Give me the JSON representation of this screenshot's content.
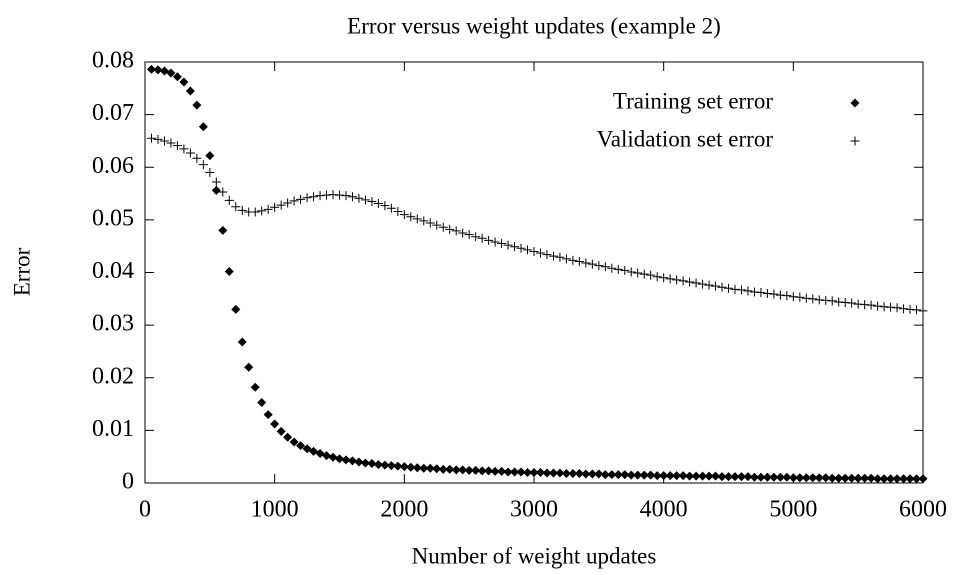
{
  "chart_data": {
    "type": "scatter",
    "title": "Error versus weight updates (example 2)",
    "xlabel": "Number of weight updates",
    "ylabel": "Error",
    "xlim": [
      0,
      6000
    ],
    "ylim": [
      0,
      0.08
    ],
    "xticks": [
      0,
      1000,
      2000,
      3000,
      4000,
      5000,
      6000
    ],
    "yticks": [
      0,
      0.01,
      0.02,
      0.03,
      0.04,
      0.05,
      0.06,
      0.07,
      0.08
    ],
    "legend": "top right",
    "x": [
      50,
      100,
      150,
      200,
      250,
      300,
      350,
      400,
      450,
      500,
      550,
      600,
      650,
      700,
      750,
      800,
      850,
      900,
      950,
      1000,
      1050,
      1100,
      1150,
      1200,
      1250,
      1300,
      1350,
      1400,
      1450,
      1500,
      1550,
      1600,
      1650,
      1700,
      1750,
      1800,
      1850,
      1900,
      1950,
      2000,
      2050,
      2100,
      2150,
      2200,
      2250,
      2300,
      2350,
      2400,
      2450,
      2500,
      2550,
      2600,
      2650,
      2700,
      2750,
      2800,
      2850,
      2900,
      2950,
      3000,
      3050,
      3100,
      3150,
      3200,
      3250,
      3300,
      3350,
      3400,
      3450,
      3500,
      3550,
      3600,
      3650,
      3700,
      3750,
      3800,
      3850,
      3900,
      3950,
      4000,
      4050,
      4100,
      4150,
      4200,
      4250,
      4300,
      4350,
      4400,
      4450,
      4500,
      4550,
      4600,
      4650,
      4700,
      4750,
      4800,
      4850,
      4900,
      4950,
      5000,
      5050,
      5100,
      5150,
      5200,
      5250,
      5300,
      5350,
      5400,
      5450,
      5500,
      5550,
      5600,
      5650,
      5700,
      5750,
      5800,
      5850,
      5900,
      5950,
      6000
    ],
    "series": [
      {
        "name": "Training set error",
        "color": "#000000",
        "marker": "diamond",
        "values": [
          0.0786,
          0.0785,
          0.0783,
          0.0779,
          0.0772,
          0.0762,
          0.0745,
          0.0718,
          0.0677,
          0.0622,
          0.0556,
          0.048,
          0.0402,
          0.033,
          0.0268,
          0.022,
          0.0182,
          0.0153,
          0.013,
          0.0112,
          0.0098,
          0.0087,
          0.0078,
          0.0071,
          0.0065,
          0.006,
          0.0056,
          0.0052,
          0.0049,
          0.0046,
          0.0044,
          0.0042,
          0.004,
          0.0038,
          0.0037,
          0.0035,
          0.0034,
          0.0033,
          0.0032,
          0.0031,
          0.003,
          0.0029,
          0.0028,
          0.0028,
          0.0027,
          0.0026,
          0.0026,
          0.0025,
          0.0025,
          0.0024,
          0.0024,
          0.0023,
          0.0023,
          0.0022,
          0.0022,
          0.0021,
          0.0021,
          0.0021,
          0.002,
          0.002,
          0.002,
          0.0019,
          0.0019,
          0.0019,
          0.0018,
          0.0018,
          0.0018,
          0.0017,
          0.0017,
          0.0017,
          0.0016,
          0.0016,
          0.0016,
          0.0016,
          0.0015,
          0.0015,
          0.0015,
          0.0015,
          0.0014,
          0.0014,
          0.0014,
          0.0014,
          0.0014,
          0.0013,
          0.0013,
          0.0013,
          0.0013,
          0.0013,
          0.0012,
          0.0012,
          0.0012,
          0.0012,
          0.0012,
          0.0011,
          0.0011,
          0.0011,
          0.0011,
          0.0011,
          0.0011,
          0.001,
          0.001,
          0.001,
          0.001,
          0.001,
          0.001,
          0.0009,
          0.0009,
          0.0009,
          0.0009,
          0.0009,
          0.0009,
          0.0009,
          0.0008,
          0.0008,
          0.0008,
          0.0008,
          0.0008,
          0.0008,
          0.0008,
          0.0008
        ]
      },
      {
        "name": "Validation set error",
        "color": "#000000",
        "marker": "plus",
        "values": [
          0.0655,
          0.0653,
          0.065,
          0.0646,
          0.0641,
          0.0635,
          0.0627,
          0.0617,
          0.0605,
          0.059,
          0.0572,
          0.0553,
          0.0537,
          0.0525,
          0.0518,
          0.0515,
          0.0515,
          0.0517,
          0.052,
          0.0524,
          0.0528,
          0.0532,
          0.0536,
          0.0539,
          0.0542,
          0.0544,
          0.0546,
          0.0547,
          0.0548,
          0.0547,
          0.0546,
          0.0544,
          0.0541,
          0.0538,
          0.0535,
          0.0531,
          0.0527,
          0.0522,
          0.0516,
          0.051,
          0.0506,
          0.0502,
          0.0498,
          0.0494,
          0.049,
          0.0486,
          0.0482,
          0.0479,
          0.0475,
          0.0472,
          0.0468,
          0.0465,
          0.0461,
          0.0458,
          0.0455,
          0.0452,
          0.0449,
          0.0446,
          0.0443,
          0.044,
          0.0437,
          0.0434,
          0.0431,
          0.0429,
          0.0426,
          0.0423,
          0.0421,
          0.0418,
          0.0416,
          0.0413,
          0.0411,
          0.0408,
          0.0406,
          0.0404,
          0.0401,
          0.0399,
          0.0397,
          0.0395,
          0.0392,
          0.039,
          0.0388,
          0.0386,
          0.0384,
          0.0382,
          0.038,
          0.0378,
          0.0376,
          0.0374,
          0.0372,
          0.037,
          0.0368,
          0.0367,
          0.0365,
          0.0363,
          0.0362,
          0.036,
          0.0359,
          0.0357,
          0.0356,
          0.0354,
          0.0353,
          0.0351,
          0.035,
          0.0348,
          0.0347,
          0.0346,
          0.0344,
          0.0343,
          0.0342,
          0.034,
          0.0339,
          0.0338,
          0.0336,
          0.0335,
          0.0334,
          0.0333,
          0.0331,
          0.033,
          0.0329,
          0.0327
        ]
      }
    ]
  }
}
